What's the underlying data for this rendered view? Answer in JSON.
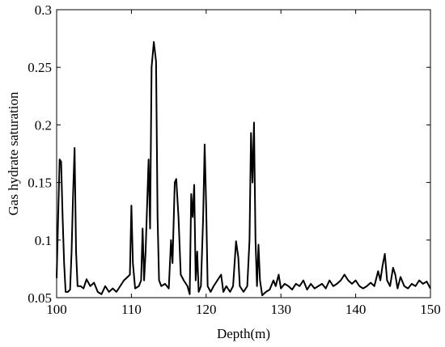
{
  "chart_data": {
    "type": "line",
    "xlabel": "Depth(m)",
    "ylabel": "Gas hydrate saturation",
    "x": [
      100.0,
      100.2,
      100.4,
      100.6,
      100.8,
      101.0,
      101.2,
      101.5,
      101.8,
      102.0,
      102.2,
      102.4,
      102.6,
      102.8,
      103.2,
      103.6,
      104.0,
      104.5,
      105.0,
      105.5,
      106.0,
      106.5,
      107.0,
      107.5,
      108.0,
      108.5,
      109.0,
      109.5,
      109.8,
      110.0,
      110.2,
      110.5,
      111.0,
      111.3,
      111.5,
      111.7,
      111.9,
      112.1,
      112.3,
      112.5,
      112.7,
      113.0,
      113.3,
      113.5,
      113.7,
      114.0,
      114.5,
      115.0,
      115.3,
      115.5,
      115.8,
      116.0,
      116.3,
      116.6,
      117.0,
      117.5,
      117.8,
      118.0,
      118.2,
      118.4,
      118.6,
      118.8,
      119.0,
      119.3,
      119.6,
      119.8,
      120.0,
      120.2,
      120.6,
      121.0,
      121.5,
      122.0,
      122.3,
      122.7,
      123.2,
      123.6,
      124.0,
      124.3,
      124.5,
      125.0,
      125.5,
      125.8,
      126.0,
      126.2,
      126.4,
      126.6,
      126.8,
      127.0,
      127.2,
      127.5,
      128.0,
      128.5,
      129.0,
      129.3,
      129.7,
      130.0,
      130.5,
      131.0,
      131.5,
      132.0,
      132.5,
      133.0,
      133.5,
      134.0,
      134.5,
      135.0,
      135.5,
      136.0,
      136.5,
      137.0,
      137.5,
      138.0,
      138.5,
      139.0,
      139.5,
      140.0,
      140.5,
      141.0,
      141.5,
      142.0,
      142.5,
      143.0,
      143.3,
      143.6,
      143.9,
      144.2,
      144.6,
      145.0,
      145.3,
      145.6,
      146.0,
      146.5,
      147.0,
      147.5,
      148.0,
      148.5,
      149.0,
      149.5,
      150.0
    ],
    "series": [
      {
        "color": "#000000",
        "values": [
          0.067,
          0.12,
          0.17,
          0.168,
          0.12,
          0.08,
          0.055,
          0.055,
          0.057,
          0.09,
          0.14,
          0.18,
          0.09,
          0.06,
          0.06,
          0.058,
          0.066,
          0.06,
          0.063,
          0.055,
          0.053,
          0.06,
          0.055,
          0.058,
          0.055,
          0.06,
          0.065,
          0.068,
          0.07,
          0.13,
          0.08,
          0.058,
          0.06,
          0.065,
          0.11,
          0.065,
          0.09,
          0.13,
          0.17,
          0.11,
          0.25,
          0.272,
          0.255,
          0.12,
          0.065,
          0.06,
          0.062,
          0.058,
          0.1,
          0.08,
          0.15,
          0.153,
          0.12,
          0.07,
          0.065,
          0.06,
          0.053,
          0.14,
          0.12,
          0.148,
          0.065,
          0.09,
          0.055,
          0.06,
          0.12,
          0.183,
          0.13,
          0.06,
          0.055,
          0.06,
          0.065,
          0.07,
          0.055,
          0.06,
          0.055,
          0.06,
          0.099,
          0.085,
          0.06,
          0.055,
          0.06,
          0.1,
          0.193,
          0.15,
          0.202,
          0.1,
          0.06,
          0.096,
          0.065,
          0.052,
          0.055,
          0.057,
          0.065,
          0.06,
          0.07,
          0.058,
          0.062,
          0.06,
          0.057,
          0.062,
          0.06,
          0.065,
          0.057,
          0.062,
          0.058,
          0.06,
          0.062,
          0.058,
          0.065,
          0.06,
          0.062,
          0.065,
          0.07,
          0.065,
          0.062,
          0.065,
          0.06,
          0.058,
          0.06,
          0.063,
          0.06,
          0.073,
          0.065,
          0.078,
          0.088,
          0.065,
          0.06,
          0.076,
          0.07,
          0.058,
          0.068,
          0.06,
          0.058,
          0.062,
          0.06,
          0.065,
          0.062,
          0.064,
          0.058
        ]
      }
    ],
    "xlim": [
      100,
      150
    ],
    "xticks": [
      100,
      110,
      120,
      130,
      140,
      150
    ],
    "ylim": [
      0.05,
      0.3
    ],
    "yticks": [
      0.05,
      0.1,
      0.15,
      0.2,
      0.25,
      0.3
    ]
  }
}
